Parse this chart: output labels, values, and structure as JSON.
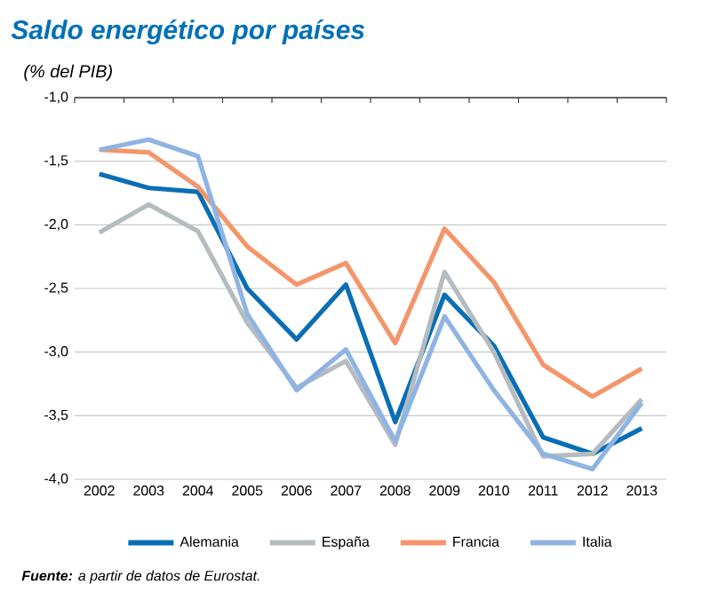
{
  "chart_data": {
    "type": "line",
    "title": "Saldo energético por países",
    "subtitle": "(% del PIB)",
    "categories": [
      "2002",
      "2003",
      "2004",
      "2005",
      "2006",
      "2007",
      "2008",
      "2009",
      "2010",
      "2011",
      "2012",
      "2013"
    ],
    "series": [
      {
        "name": "Alemania",
        "color": "#0a6eb4",
        "values": [
          -1.6,
          -1.71,
          -1.74,
          -2.5,
          -2.9,
          -2.47,
          -3.55,
          -2.55,
          -2.95,
          -3.67,
          -3.8,
          -3.6
        ]
      },
      {
        "name": "España",
        "color": "#b4bcc0",
        "values": [
          -2.06,
          -1.84,
          -2.05,
          -2.77,
          -3.28,
          -3.07,
          -3.73,
          -2.37,
          -3.0,
          -3.82,
          -3.8,
          -3.37
        ]
      },
      {
        "name": "Francia",
        "color": "#f4956a",
        "values": [
          -1.41,
          -1.43,
          -1.7,
          -2.17,
          -2.47,
          -2.3,
          -2.93,
          -2.03,
          -2.45,
          -3.1,
          -3.35,
          -3.13
        ]
      },
      {
        "name": "Italia",
        "color": "#8fb4e3",
        "values": [
          -1.41,
          -1.33,
          -1.46,
          -2.7,
          -3.3,
          -2.98,
          -3.7,
          -2.72,
          -3.3,
          -3.8,
          -3.92,
          -3.4
        ]
      }
    ],
    "ylim": [
      -4.0,
      -1.0
    ],
    "yticks": [
      {
        "value": -4.0,
        "label": "-4,0"
      },
      {
        "value": -3.5,
        "label": "-3,5"
      },
      {
        "value": -3.0,
        "label": "-3,0"
      },
      {
        "value": -2.5,
        "label": "-2,5"
      },
      {
        "value": -2.0,
        "label": "-2,0"
      },
      {
        "value": -1.5,
        "label": "-1,5"
      },
      {
        "value": -1.0,
        "label": "-1,0"
      }
    ],
    "grid": "y",
    "legend": "bottom",
    "marker": "none",
    "line_style": "solid",
    "annotations": [
      "**Fuente:** a partir de datos de Eurostat."
    ]
  }
}
